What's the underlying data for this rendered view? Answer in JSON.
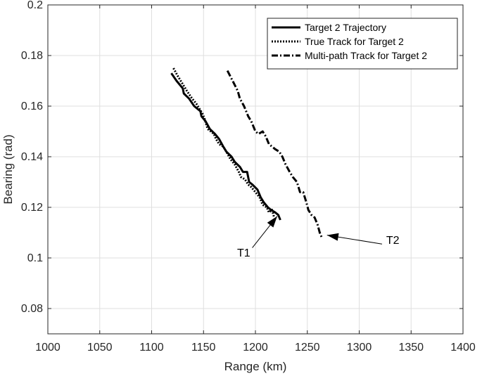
{
  "chart_data": {
    "type": "line",
    "xlabel": "Range (km)",
    "ylabel": "Bearing (rad)",
    "xlim": [
      1000,
      1400
    ],
    "ylim": [
      0.07,
      0.2
    ],
    "xticks": [
      1000,
      1050,
      1100,
      1150,
      1200,
      1250,
      1300,
      1350,
      1400
    ],
    "yticks": [
      0.08,
      0.1,
      0.12,
      0.14,
      0.16,
      0.18,
      0.2
    ],
    "xtick_labels": [
      "1000",
      "1050",
      "1100",
      "1150",
      "1200",
      "1250",
      "1300",
      "1350",
      "1400"
    ],
    "ytick_labels": [
      "0.08",
      "0.1",
      "0.12",
      "0.14",
      "0.16",
      "0.18",
      "0.2"
    ],
    "grid": true,
    "legend_position": "top-right",
    "series": [
      {
        "name": "Target 2 Trajectory",
        "style": "solid",
        "color": "#000000",
        "x": [
          1119,
          1124,
          1130,
          1131,
          1136,
          1141,
          1147,
          1148,
          1152,
          1156,
          1161,
          1165,
          1169,
          1172,
          1177,
          1180,
          1185,
          1188,
          1192,
          1194,
          1197,
          1202,
          1205,
          1208,
          1212,
          1215,
          1219,
          1222,
          1224
        ],
        "y": [
          0.173,
          0.17,
          0.167,
          0.165,
          0.163,
          0.16,
          0.158,
          0.156,
          0.154,
          0.151,
          0.149,
          0.147,
          0.144,
          0.142,
          0.14,
          0.138,
          0.136,
          0.134,
          0.134,
          0.13,
          0.129,
          0.127,
          0.124,
          0.122,
          0.12,
          0.119,
          0.118,
          0.117,
          0.115
        ]
      },
      {
        "name": "True Track for Target 2",
        "style": "dotted",
        "color": "#000000",
        "x": [
          1121,
          1125,
          1131,
          1134,
          1139,
          1143,
          1149,
          1151,
          1154,
          1157,
          1160,
          1162,
          1165,
          1169,
          1172,
          1176,
          1180,
          1184,
          1186,
          1190,
          1193,
          1196,
          1200,
          1204,
          1207,
          1211,
          1213,
          1216,
          1218
        ],
        "y": [
          0.175,
          0.172,
          0.168,
          0.166,
          0.163,
          0.161,
          0.157,
          0.155,
          0.151,
          0.15,
          0.149,
          0.147,
          0.145,
          0.144,
          0.142,
          0.139,
          0.137,
          0.134,
          0.132,
          0.131,
          0.129,
          0.128,
          0.126,
          0.124,
          0.121,
          0.12,
          0.118,
          0.119,
          0.116
        ]
      },
      {
        "name": "Multi-path Track for Target 2",
        "style": "dashdot",
        "color": "#000000",
        "x": [
          1173,
          1178,
          1183,
          1185,
          1189,
          1193,
          1196,
          1200,
          1203,
          1207,
          1210,
          1213,
          1219,
          1223,
          1226,
          1229,
          1233,
          1236,
          1240,
          1243,
          1246,
          1249,
          1251,
          1254,
          1257,
          1260,
          1262,
          1264
        ],
        "y": [
          0.174,
          0.17,
          0.166,
          0.163,
          0.16,
          0.156,
          0.154,
          0.15,
          0.149,
          0.15,
          0.148,
          0.145,
          0.143,
          0.142,
          0.14,
          0.137,
          0.134,
          0.132,
          0.13,
          0.126,
          0.126,
          0.122,
          0.119,
          0.117,
          0.116,
          0.113,
          0.11,
          0.108
        ]
      }
    ],
    "annotations": [
      {
        "text": "T1",
        "text_x": 1195,
        "text_y": 0.1005,
        "arrow_from": [
          1197,
          0.104
        ],
        "arrow_to": [
          1221,
          0.1165
        ]
      },
      {
        "text": "T2",
        "text_x": 1326,
        "text_y": 0.1055,
        "arrow_from": [
          1322,
          0.1055
        ],
        "arrow_to": [
          1269,
          0.109
        ]
      }
    ]
  }
}
